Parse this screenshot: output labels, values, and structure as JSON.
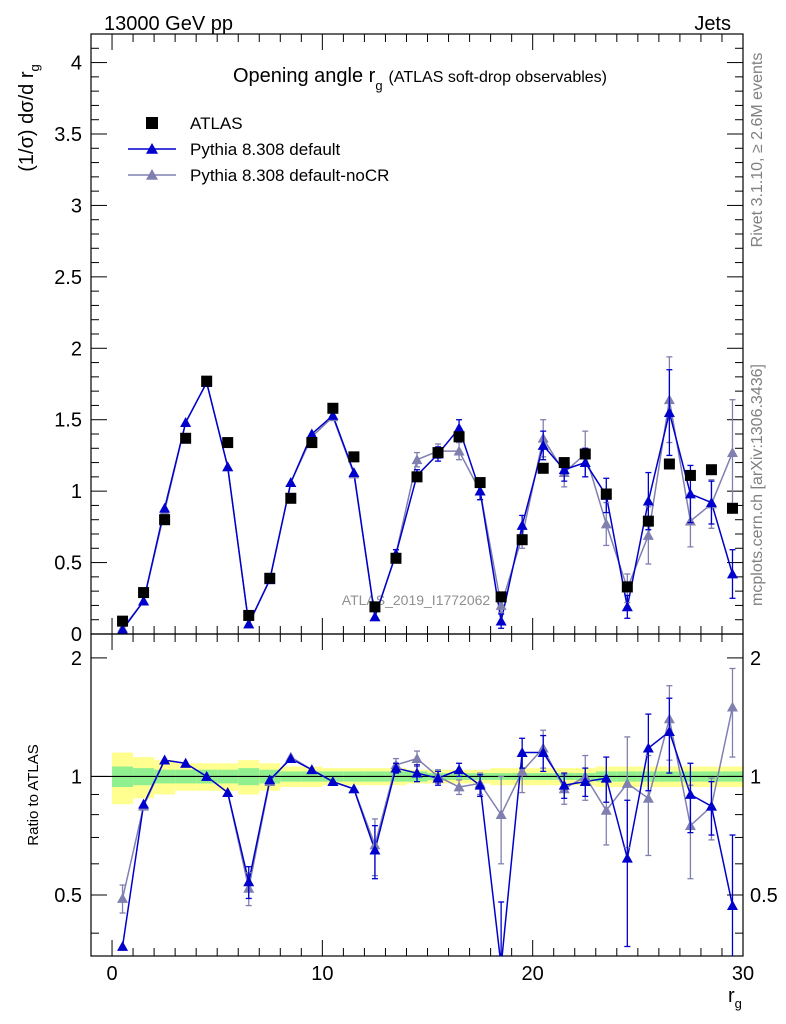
{
  "header": {
    "left": "13000 GeV pp",
    "right": "Jets"
  },
  "side_labels": {
    "rivet": "Rivet 3.1.10, ≥ 2.6M events",
    "mcplots": "mcplots.cern.ch [arXiv:1306.3436]"
  },
  "chart_data": {
    "type": "scatter",
    "title": "Opening angle r",
    "title_sub": "g",
    "title_note": "(ATLAS soft-drop observables)",
    "analysis_label": "ATLAS_2019_I1772062",
    "xlabel": "r",
    "xlabel_sub": "g",
    "ylabel": "(1/σ) dσ/d r",
    "ylabel_sub": "g",
    "ratio_ylabel": "Ratio to ATLAS",
    "xlim": [
      -1,
      30
    ],
    "ylim": [
      0,
      4.2
    ],
    "ratio_ylim": [
      0.35,
      2.3
    ],
    "x_ticks": [
      0,
      10,
      20,
      30
    ],
    "y_ticks": [
      0,
      0.5,
      1,
      1.5,
      2,
      2.5,
      3,
      3.5,
      4
    ],
    "y_tick_labels": [
      "0",
      "0.5",
      "1",
      "1.5",
      "2",
      "2.5",
      "3",
      "3.5",
      "4"
    ],
    "ratio_ticks": [
      0.5,
      1,
      2
    ],
    "ratio_tick_labels": [
      "0.5",
      "1",
      "2"
    ],
    "legend_position": "top-left",
    "x": [
      0.5,
      1.5,
      2.5,
      3.5,
      4.5,
      5.5,
      6.5,
      7.5,
      8.5,
      9.5,
      10.5,
      11.5,
      12.5,
      13.5,
      14.5,
      15.5,
      16.5,
      17.5,
      18.5,
      19.5,
      20.5,
      21.5,
      22.5,
      23.5,
      24.5,
      25.5,
      26.5,
      27.5,
      28.5,
      29.5
    ],
    "series": [
      {
        "name": "ATLAS",
        "color": "#000000",
        "marker": "square",
        "values": [
          0.09,
          0.29,
          0.8,
          1.37,
          1.77,
          1.34,
          0.13,
          0.39,
          0.95,
          1.34,
          1.58,
          1.24,
          0.19,
          0.53,
          1.1,
          1.27,
          1.38,
          1.06,
          0.26,
          0.66,
          1.16,
          1.2,
          1.26,
          0.98,
          0.33,
          0.79,
          1.19,
          1.11,
          1.15,
          0.88
        ]
      },
      {
        "name": "Pythia 8.308 default",
        "color": "#0000cc",
        "marker": "triangle",
        "values": [
          0.03,
          0.23,
          0.88,
          1.48,
          1.76,
          1.17,
          0.07,
          0.38,
          1.06,
          1.4,
          1.53,
          1.13,
          0.12,
          0.56,
          1.11,
          1.26,
          1.44,
          1.0,
          0.09,
          0.76,
          1.32,
          1.15,
          1.2,
          0.97,
          0.19,
          0.93,
          1.55,
          0.98,
          0.92,
          0.42
        ],
        "errors": [
          0.01,
          0.01,
          0.01,
          0.01,
          0.01,
          0.01,
          0.01,
          0.01,
          0.01,
          0.01,
          0.01,
          0.01,
          0.01,
          0.03,
          0.04,
          0.05,
          0.06,
          0.06,
          0.05,
          0.07,
          0.1,
          0.08,
          0.1,
          0.12,
          0.08,
          0.2,
          0.3,
          0.2,
          0.15,
          0.17
        ]
      },
      {
        "name": "Pythia 8.308 default-noCR",
        "color": "#8080b0",
        "marker": "triangle",
        "values": [
          0.04,
          0.23,
          0.86,
          1.48,
          1.76,
          1.17,
          0.07,
          0.38,
          1.06,
          1.38,
          1.52,
          1.12,
          0.12,
          0.56,
          1.22,
          1.28,
          1.28,
          1.0,
          0.2,
          0.68,
          1.37,
          1.13,
          1.26,
          0.77,
          0.32,
          0.69,
          1.64,
          0.79,
          0.91,
          1.27
        ],
        "errors": [
          0.01,
          0.01,
          0.01,
          0.01,
          0.01,
          0.01,
          0.01,
          0.01,
          0.01,
          0.01,
          0.01,
          0.01,
          0.01,
          0.03,
          0.05,
          0.05,
          0.06,
          0.06,
          0.05,
          0.08,
          0.13,
          0.1,
          0.16,
          0.15,
          0.1,
          0.2,
          0.3,
          0.18,
          0.17,
          0.37
        ]
      }
    ],
    "ratio": {
      "reference_line": 1,
      "series": [
        {
          "name": "Pythia 8.308 default",
          "values": [
            0.37,
            0.85,
            1.1,
            1.08,
            1.0,
            0.91,
            0.54,
            0.98,
            1.11,
            1.04,
            0.97,
            0.93,
            0.65,
            1.05,
            1.02,
            0.99,
            1.04,
            0.95,
            0.33,
            1.15,
            1.15,
            0.95,
            0.97,
            0.99,
            0.62,
            1.18,
            1.3,
            0.9,
            0.84,
            0.47
          ],
          "errors": [
            0.02,
            0.02,
            0.02,
            0.01,
            0.01,
            0.01,
            0.05,
            0.02,
            0.01,
            0.01,
            0.01,
            0.01,
            0.1,
            0.03,
            0.05,
            0.04,
            0.04,
            0.06,
            0.15,
            0.1,
            0.12,
            0.07,
            0.08,
            0.13,
            0.25,
            0.26,
            0.28,
            0.18,
            0.13,
            0.24
          ]
        },
        {
          "name": "Pythia 8.308 default-noCR",
          "values": [
            0.49,
            0.84,
            1.1,
            1.08,
            1.0,
            0.91,
            0.52,
            0.97,
            1.12,
            1.04,
            0.97,
            0.93,
            0.67,
            1.07,
            1.11,
            1.0,
            0.94,
            0.96,
            0.8,
            1.03,
            1.18,
            0.93,
            1.0,
            0.82,
            0.96,
            0.88,
            1.4,
            0.75,
            0.84,
            1.5
          ],
          "errors": [
            0.04,
            0.02,
            0.02,
            0.01,
            0.01,
            0.01,
            0.05,
            0.02,
            0.01,
            0.01,
            0.01,
            0.01,
            0.11,
            0.04,
            0.05,
            0.04,
            0.04,
            0.06,
            0.2,
            0.12,
            0.13,
            0.08,
            0.13,
            0.15,
            0.3,
            0.25,
            0.3,
            0.2,
            0.15,
            0.38
          ]
        }
      ],
      "band_colors": {
        "inner": "#90f090",
        "outer": "#ffff90"
      },
      "band_inner_halfwidth": [
        0.06,
        0.05,
        0.04,
        0.04,
        0.04,
        0.04,
        0.05,
        0.04,
        0.03,
        0.03,
        0.03,
        0.03,
        0.03,
        0.03,
        0.03,
        0.02,
        0.02,
        0.02,
        0.02,
        0.02,
        0.02,
        0.02,
        0.02,
        0.03,
        0.03,
        0.03,
        0.03,
        0.03,
        0.03,
        0.03
      ],
      "band_outer_halfwidth": [
        0.15,
        0.12,
        0.1,
        0.08,
        0.08,
        0.08,
        0.1,
        0.08,
        0.06,
        0.06,
        0.05,
        0.05,
        0.05,
        0.05,
        0.04,
        0.04,
        0.04,
        0.04,
        0.05,
        0.05,
        0.05,
        0.05,
        0.05,
        0.06,
        0.06,
        0.06,
        0.06,
        0.06,
        0.06,
        0.06
      ]
    }
  }
}
